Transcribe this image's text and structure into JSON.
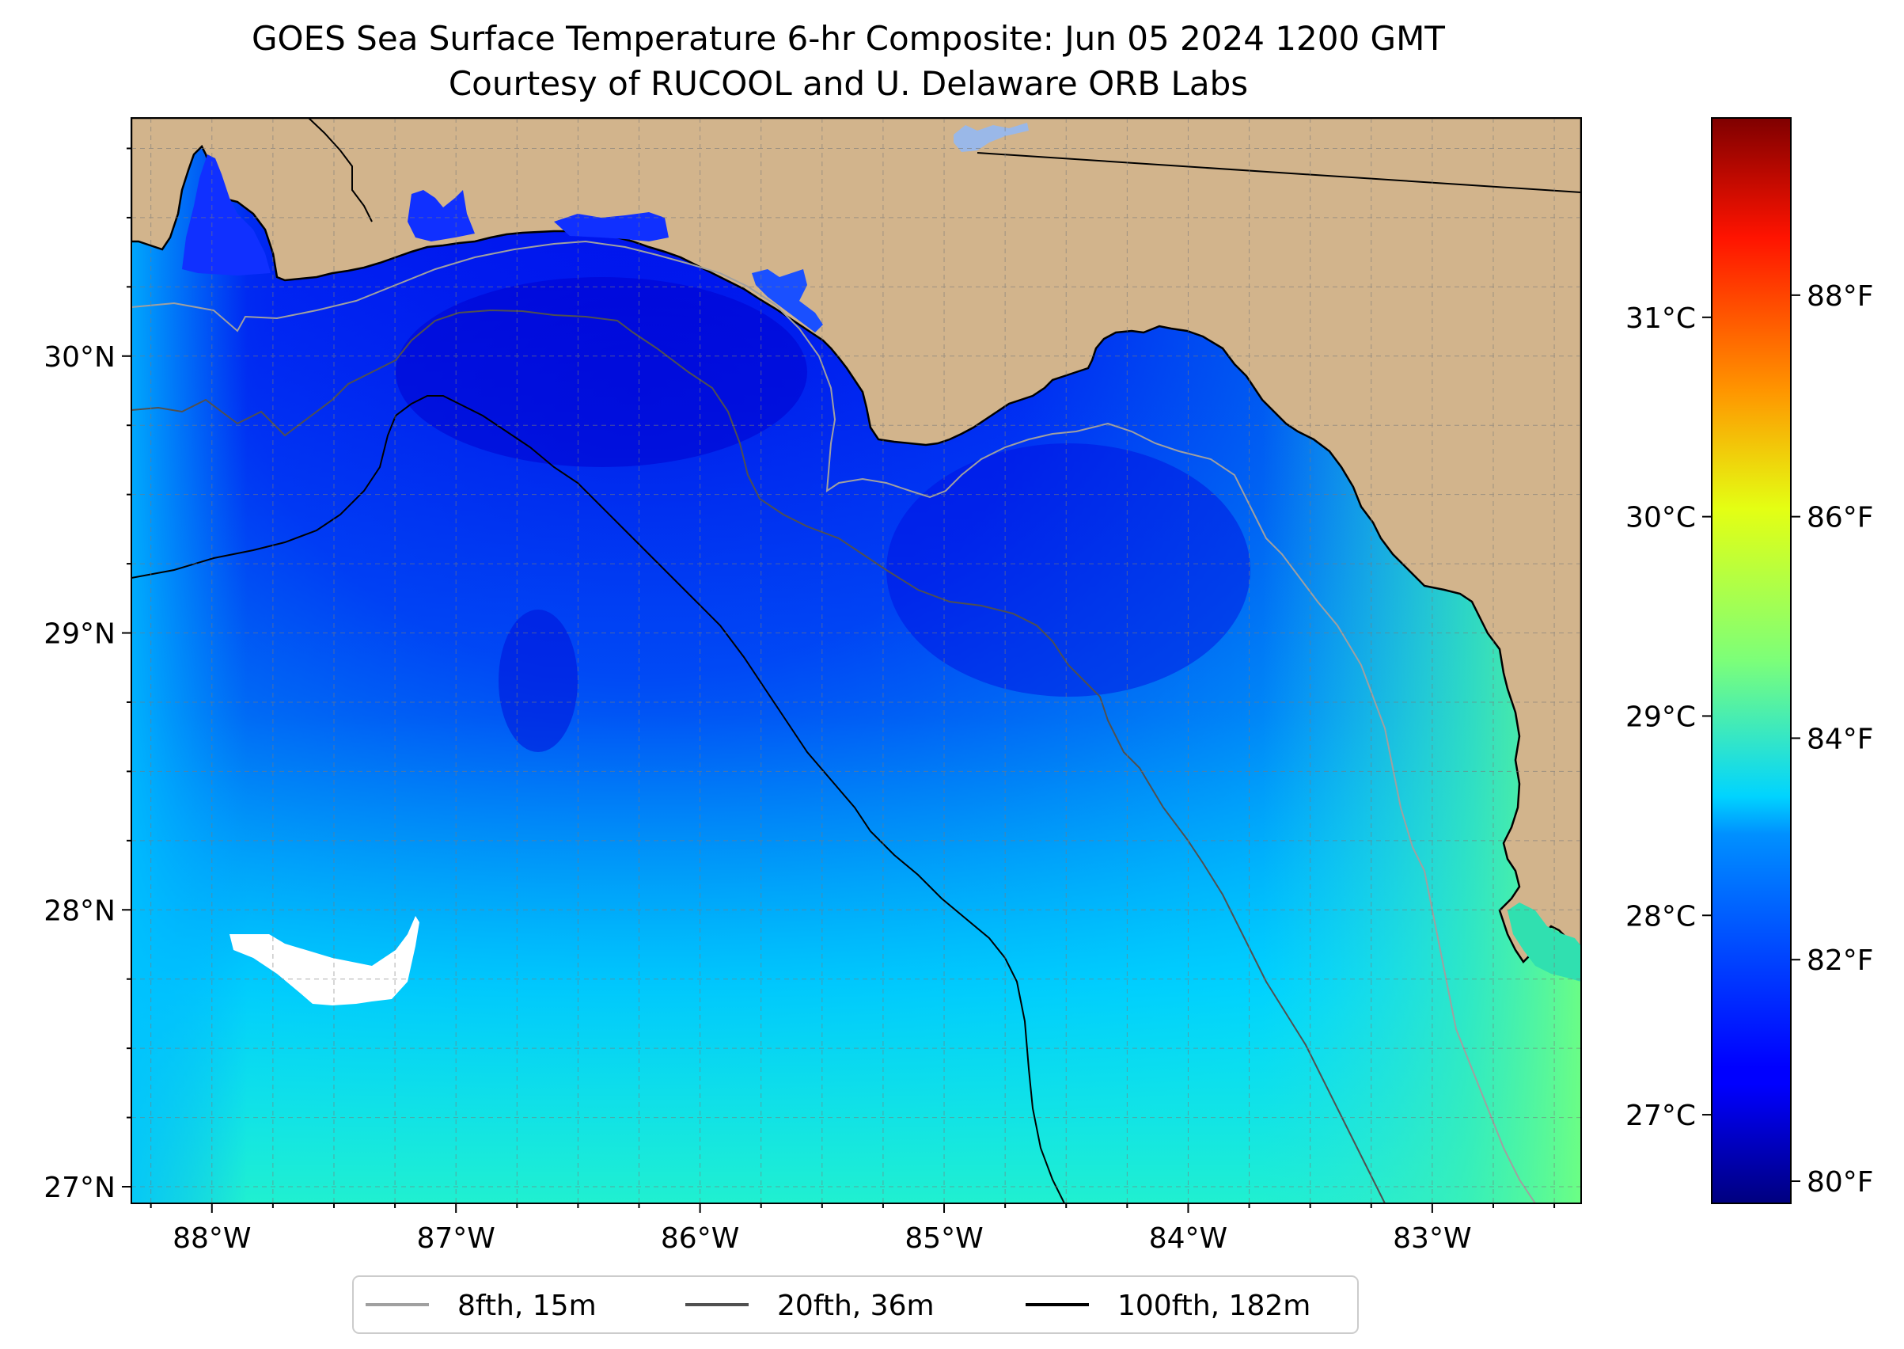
{
  "title": {
    "line1": "GOES Sea Surface Temperature 6-hr Composite: Jun 05 2024 1200 GMT",
    "line2": "Courtesy of RUCOOL and U. Delaware ORB Labs"
  },
  "map": {
    "lon_range": [
      -88.33,
      -82.39
    ],
    "lat_range": [
      26.94,
      30.86
    ],
    "lon_ticks": [
      {
        "value": -88,
        "label": "88°W"
      },
      {
        "value": -87,
        "label": "87°W"
      },
      {
        "value": -86,
        "label": "86°W"
      },
      {
        "value": -85,
        "label": "85°W"
      },
      {
        "value": -84,
        "label": "84°W"
      },
      {
        "value": -83,
        "label": "83°W"
      }
    ],
    "lat_ticks": [
      {
        "value": 27,
        "label": "27°N"
      },
      {
        "value": 28,
        "label": "28°N"
      },
      {
        "value": 29,
        "label": "29°N"
      },
      {
        "value": 30,
        "label": "30°N"
      }
    ],
    "gridlines": "dashed",
    "land_color": "#d2b48c",
    "coastline_color": "#000000"
  },
  "colorbar": {
    "colormap": "jet",
    "celsius_ticks": [
      {
        "value": 27,
        "label": "27°C"
      },
      {
        "value": 28,
        "label": "28°C"
      },
      {
        "value": 29,
        "label": "29°C"
      },
      {
        "value": 30,
        "label": "30°C"
      },
      {
        "value": 31,
        "label": "31°C"
      }
    ],
    "fahrenheit_ticks": [
      {
        "value": 80,
        "label": "80°F"
      },
      {
        "value": 82,
        "label": "82°F"
      },
      {
        "value": 84,
        "label": "84°F"
      },
      {
        "value": 86,
        "label": "86°F"
      },
      {
        "value": 88,
        "label": "88°F"
      }
    ],
    "range_fahrenheit": [
      79.8,
      89.6
    ]
  },
  "legend": {
    "placement": "bottom-center",
    "items": [
      {
        "label": "8fth, 15m",
        "color": "#a0a0a0"
      },
      {
        "label": "20fth, 36m",
        "color": "#505050"
      },
      {
        "label": "100fth, 182m",
        "color": "#000000"
      }
    ]
  }
}
